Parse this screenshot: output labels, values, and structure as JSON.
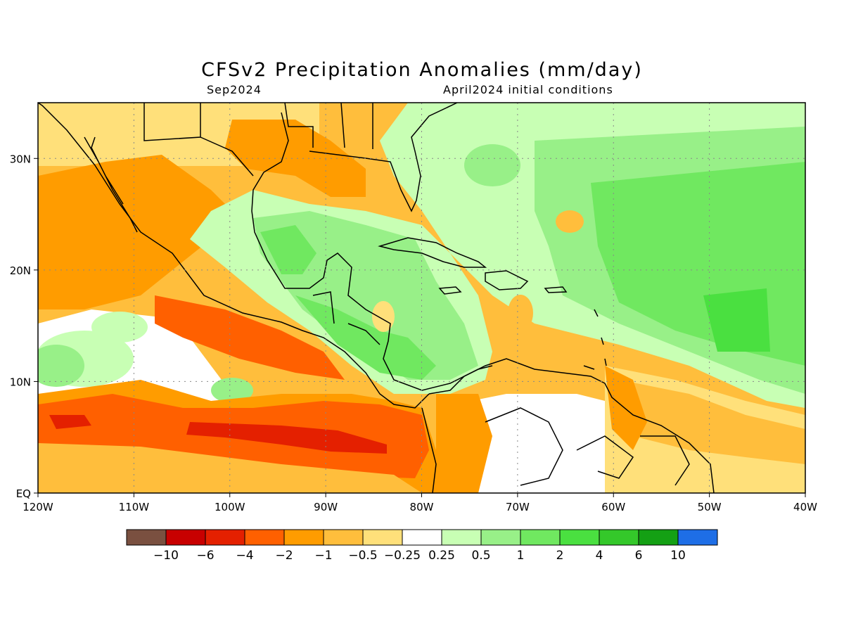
{
  "title": "CFSv2 Precipitation Anomalies (mm/day)",
  "subtitle_left": "Sep2024",
  "subtitle_right": "April2024 initial conditions",
  "axes": {
    "lon_range": [
      -120,
      -40
    ],
    "lat_range": [
      0,
      35
    ],
    "x_ticks": [
      {
        "value": -120,
        "label": "120W"
      },
      {
        "value": -110,
        "label": "110W"
      },
      {
        "value": -100,
        "label": "100W"
      },
      {
        "value": -90,
        "label": "90W"
      },
      {
        "value": -80,
        "label": "80W"
      },
      {
        "value": -70,
        "label": "70W"
      },
      {
        "value": -60,
        "label": "60W"
      },
      {
        "value": -50,
        "label": "50W"
      },
      {
        "value": -40,
        "label": "40W"
      }
    ],
    "y_ticks": [
      {
        "value": 0,
        "label": "EQ"
      },
      {
        "value": 10,
        "label": "10N"
      },
      {
        "value": 20,
        "label": "20N"
      },
      {
        "value": 30,
        "label": "30N"
      }
    ],
    "grid": "dotted"
  },
  "legend": {
    "colors": [
      "#7a5040",
      "#c80000",
      "#e42000",
      "#ff6000",
      "#ff9c00",
      "#ffbe3c",
      "#ffe07a",
      "#ffffff",
      "#c8ffb4",
      "#98f088",
      "#70e860",
      "#4ae040",
      "#34c82a",
      "#14a014",
      "#1e6ee6"
    ],
    "labels": [
      "-10",
      "-6",
      "-4",
      "-2",
      "-1",
      "-0.5",
      "-0.25",
      "0.25",
      "0.5",
      "1",
      "2",
      "4",
      "6",
      "10"
    ]
  },
  "palette": {
    "strong_dry": "#e42000",
    "dry": "#ff6000",
    "moderate_dry": "#ff9c00",
    "light_dry": "#ffbe3c",
    "slight_dry": "#ffe07a",
    "neutral": "#ffffff",
    "slight_wet": "#c8ffb4",
    "light_wet": "#98f088",
    "wet": "#70e860",
    "strong_wet": "#4ae040"
  }
}
